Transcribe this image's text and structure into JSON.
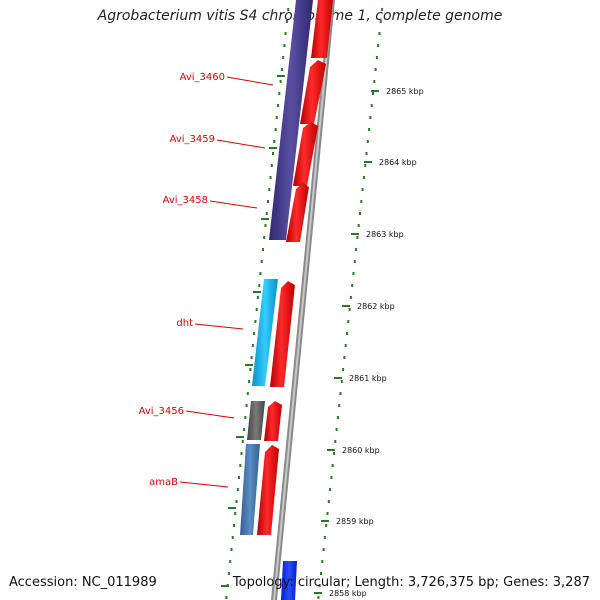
{
  "title": "Agrobacterium vitis S4 chromosome 1, complete genome",
  "footer": {
    "accession": "Accession: NC_011989",
    "topology": "Topology: circular; Length: 3,726,375 bp; Genes: 3,287"
  },
  "colors": {
    "forward_gene": "#ff0000",
    "reverse_gene_purple": "#4a3f8f",
    "reverse_gene_cyan": "#1ab8ee",
    "reverse_gene_gray": "#666666",
    "reverse_gene_steel": "#4a7fb5",
    "bottom_gene": "#1030ff",
    "backbone": "#888888",
    "tick_green": "#2a7a2a",
    "label_red": "#dd0000"
  },
  "gene_labels": [
    "Avi_3460",
    "Avi_3459",
    "Avi_3458",
    "dht",
    "Avi_3456",
    "amaB"
  ],
  "tick_labels": [
    "2865 kbp",
    "2864 kbp",
    "2863 kbp",
    "2862 kbp",
    "2861 kbp",
    "2860 kbp",
    "2859 kbp",
    "2858 kbp"
  ]
}
